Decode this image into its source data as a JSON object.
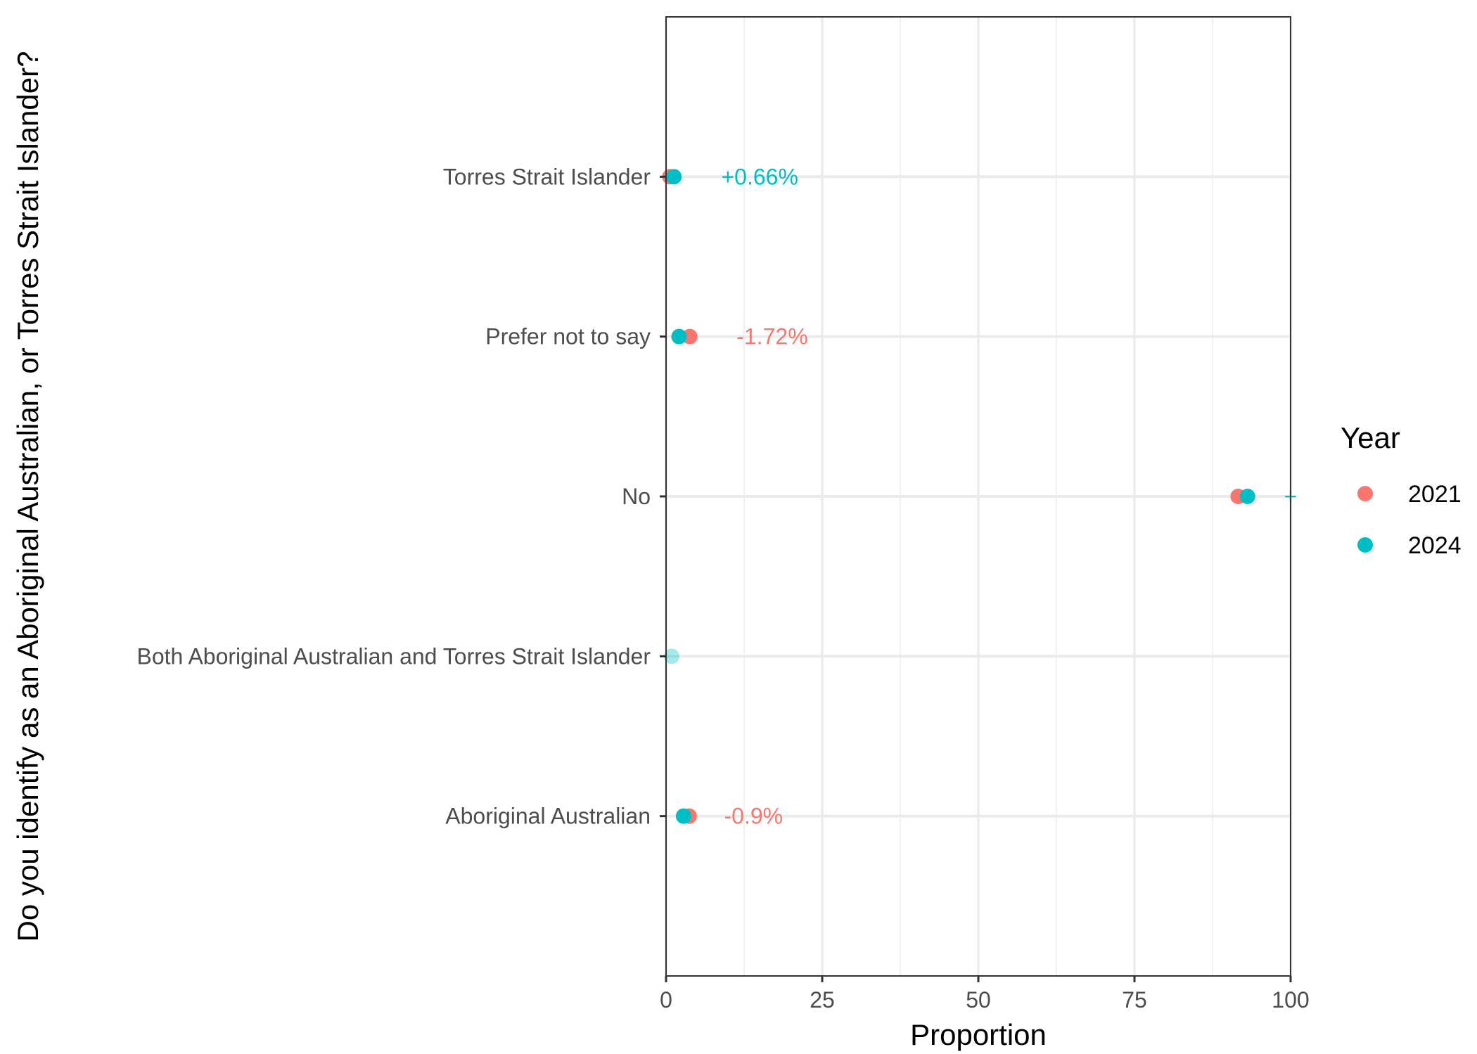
{
  "chart_data": {
    "type": "scatter",
    "xlabel": "Proportion",
    "ylabel": "Do you identify as an Aboriginal Australian, or Torres Strait Islander?",
    "xlim": [
      0,
      100
    ],
    "x_ticks": [
      "0",
      "25",
      "50",
      "75",
      "100"
    ],
    "x_tick_values": [
      0,
      25,
      50,
      75,
      100
    ],
    "grid": true,
    "categories": [
      "Torres Strait Islander",
      "Prefer not to say",
      "No",
      "Both Aboriginal Australian and Torres Strait Islander",
      "Aboriginal Australian"
    ],
    "series": [
      {
        "name": "2021",
        "color": "#F8766D",
        "values": [
          0.6,
          3.8,
          91.6,
          null,
          3.7
        ]
      },
      {
        "name": "2024",
        "color": "#00BFC4",
        "values": [
          1.26,
          2.08,
          93.1,
          0.9,
          2.8
        ]
      }
    ],
    "point_alpha": [
      1,
      1,
      1,
      0.35,
      1
    ],
    "annotations": [
      {
        "category": "Torres Strait Islander",
        "text": "+0.66%",
        "color": "#00BFC4",
        "x": 15
      },
      {
        "category": "Prefer not to say",
        "text": "-1.72%",
        "color": "#F8766D",
        "x": 17
      },
      {
        "category": "No",
        "text": "+",
        "color": "#00BFC4",
        "x": 100
      },
      {
        "category": "Aboriginal Australian",
        "text": "-0.9%",
        "color": "#F8766D",
        "x": 14
      }
    ],
    "legend": {
      "title": "Year",
      "position": "right",
      "items": [
        {
          "label": "2021",
          "color": "#F8766D"
        },
        {
          "label": "2024",
          "color": "#00BFC4"
        }
      ]
    }
  }
}
